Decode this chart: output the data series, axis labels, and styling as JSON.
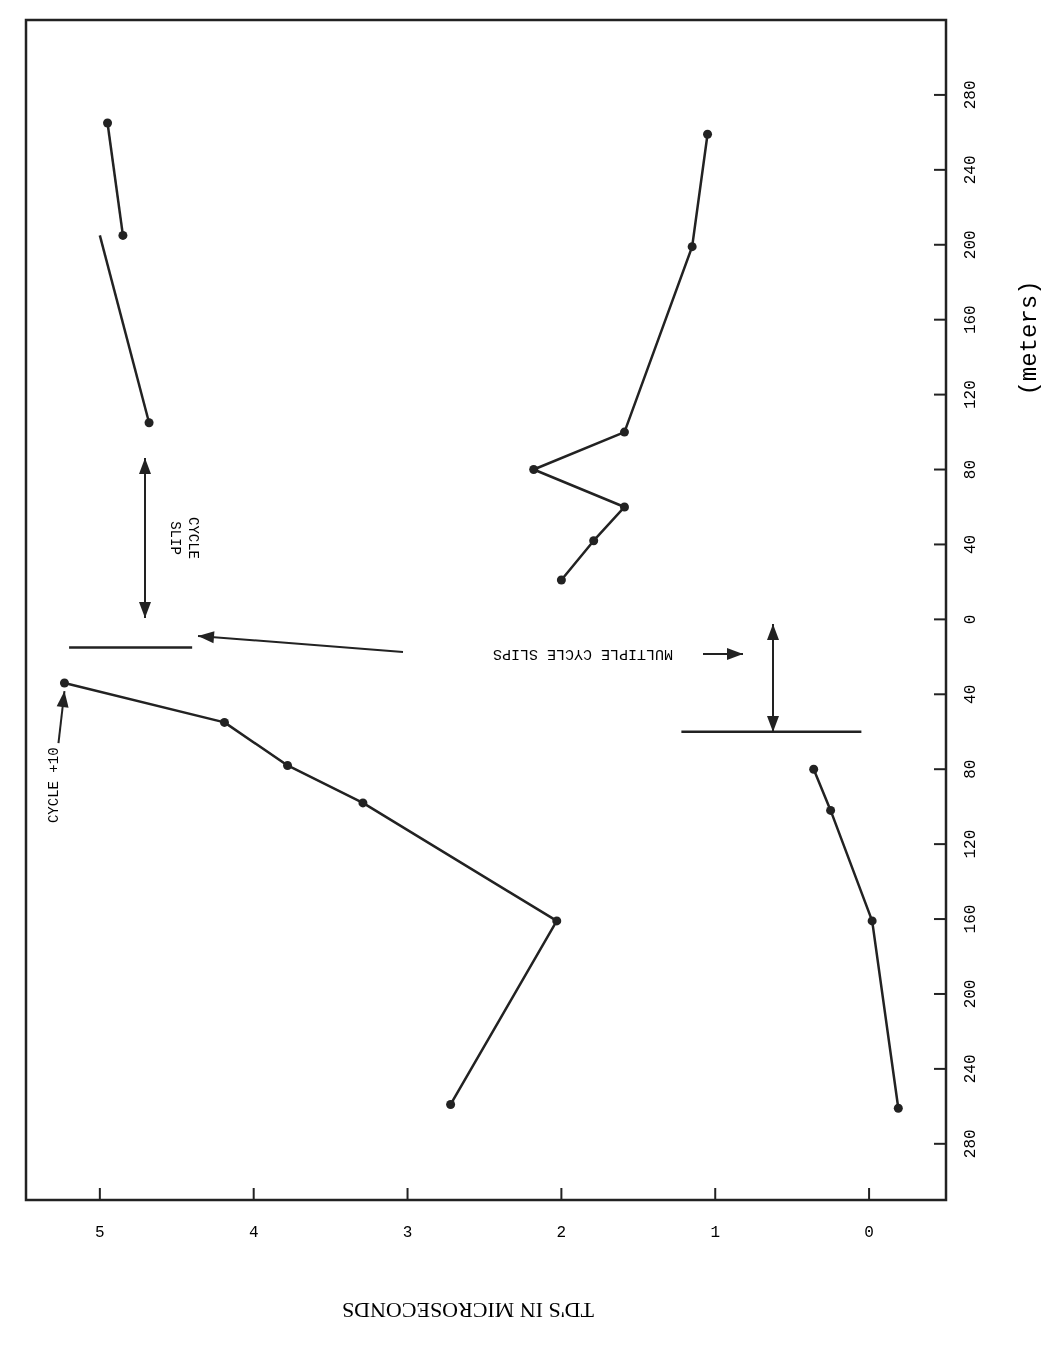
{
  "chart_data": {
    "type": "line",
    "xlabel": "TD'S IN MICROSECONDS",
    "ylabel": "(meters)",
    "xlim": [
      5.48,
      -0.5
    ],
    "ylim": [
      -310,
      320
    ],
    "xticks": [
      5,
      4,
      3,
      2,
      1,
      0
    ],
    "yticks": [
      {
        "value": -280,
        "label": "280"
      },
      {
        "value": -240,
        "label": "240"
      },
      {
        "value": -200,
        "label": "200"
      },
      {
        "value": -160,
        "label": "160"
      },
      {
        "value": -120,
        "label": "120"
      },
      {
        "value": -80,
        "label": "80"
      },
      {
        "value": -40,
        "label": "40"
      },
      0,
      40,
      80,
      120,
      160,
      200,
      240,
      280
    ],
    "grid": false,
    "marker": "circle",
    "line_style": "solid",
    "series": [
      {
        "color": "#222222",
        "x": [
          4.95,
          4.85
        ],
        "values": [
          265,
          205
        ]
      },
      {
        "color": "#222222",
        "x": [
          5.0,
          4.68
        ],
        "values": [
          205,
          105
        ],
        "marker": "none"
      },
      {
        "type": "scatter",
        "color": "#222222",
        "x": [
          4.68
        ],
        "values": [
          105
        ]
      },
      {
        "color": "#222222",
        "x": [
          1.05,
          1.15,
          1.59,
          2.18,
          1.59,
          1.79,
          2.0
        ],
        "values": [
          259,
          199,
          100,
          80,
          60,
          42,
          21
        ]
      },
      {
        "color": "#222222",
        "x": [
          5.23,
          4.19,
          3.78,
          3.29,
          2.03,
          2.72
        ],
        "values": [
          -34,
          -55,
          -78,
          -98,
          -161,
          -259
        ]
      },
      {
        "color": "#222222",
        "x": [
          0.36,
          0.25,
          -0.02,
          -0.19
        ],
        "values": [
          -80,
          -102,
          -161,
          -261
        ]
      },
      {
        "color": "#222222",
        "x": [
          5.2,
          4.4
        ],
        "values": [
          -15,
          -15
        ],
        "marker": "none"
      },
      {
        "color": "#222222",
        "x": [
          1.22,
          0.05
        ],
        "values": [
          -60,
          -60
        ],
        "marker": "none"
      }
    ],
    "annotations": [
      {
        "text": "CYCLE +10",
        "x": 5.23,
        "y": -34
      },
      "CYCLE SLIP",
      "MULTIPLE CYCLE SLIPS"
    ]
  }
}
